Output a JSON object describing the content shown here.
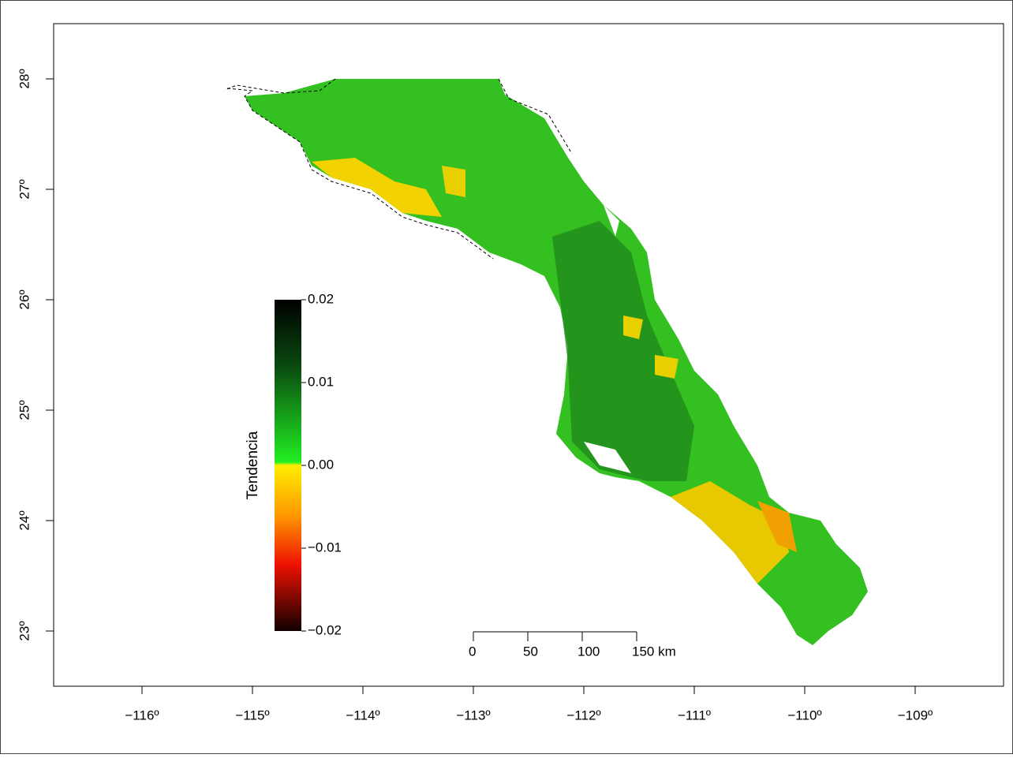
{
  "map": {
    "xlim": [
      -116.8,
      -108.2
    ],
    "ylim": [
      22.5,
      28.5
    ],
    "x_ticks": [
      {
        "value": -116,
        "label": "−116º"
      },
      {
        "value": -115,
        "label": "−115º"
      },
      {
        "value": -114,
        "label": "−114º"
      },
      {
        "value": -113,
        "label": "−113º"
      },
      {
        "value": -112,
        "label": "−112º"
      },
      {
        "value": -111,
        "label": "−111º"
      },
      {
        "value": -110,
        "label": "−110º"
      },
      {
        "value": -109,
        "label": "−109º"
      }
    ],
    "y_ticks": [
      {
        "value": 23,
        "label": "23º"
      },
      {
        "value": 24,
        "label": "24º"
      },
      {
        "value": 25,
        "label": "25º"
      },
      {
        "value": 26,
        "label": "26º"
      },
      {
        "value": 27,
        "label": "27º"
      },
      {
        "value": 28,
        "label": "28º"
      }
    ],
    "colorbar": {
      "title": "Tendencia",
      "lim": [
        -0.02,
        0.02
      ],
      "ticks": [
        {
          "value": 0.02,
          "label": "0.02"
        },
        {
          "value": 0.01,
          "label": "0.01"
        },
        {
          "value": 0,
          "label": "0.00"
        },
        {
          "value": -0.01,
          "label": "−0.01"
        },
        {
          "value": -0.02,
          "label": "−0.02"
        }
      ]
    },
    "scale_bar": {
      "ticks": [
        {
          "value": 0,
          "label": "0"
        },
        {
          "value": 50,
          "label": "50"
        },
        {
          "value": 100,
          "label": "100"
        },
        {
          "value": 150,
          "label": "150 km"
        }
      ]
    }
  }
}
